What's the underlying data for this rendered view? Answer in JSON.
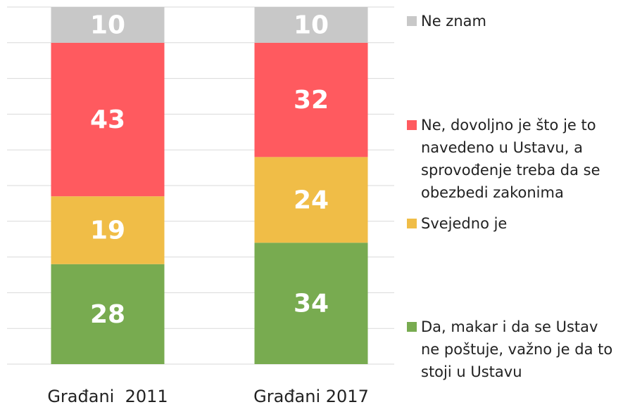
{
  "chart_data": {
    "type": "stacked_bar",
    "categories": [
      "Građani  2011",
      "Građani 2017"
    ],
    "series": [
      {
        "name": "Da, makar i da se Ustav ne poštuje, važno je da to stoji u Ustavu",
        "color": "#78ab50",
        "values": [
          28,
          34
        ]
      },
      {
        "name": "Svejedno je",
        "color": "#f0bd47",
        "values": [
          19,
          24
        ]
      },
      {
        "name": "Ne, dovoljno je što je to navedeno u Ustavu, a sprovođenje treba da se obezbedi zakonima",
        "color": "#ff5a5f",
        "values": [
          43,
          32
        ]
      },
      {
        "name": "Ne znam",
        "color": "#c8c8c8",
        "values": [
          10,
          10
        ]
      }
    ],
    "ylim": [
      0,
      100
    ],
    "yticks": [
      0,
      10,
      20,
      30,
      40,
      50,
      60,
      70,
      80,
      90,
      100
    ],
    "grid": true,
    "legend": "right"
  }
}
